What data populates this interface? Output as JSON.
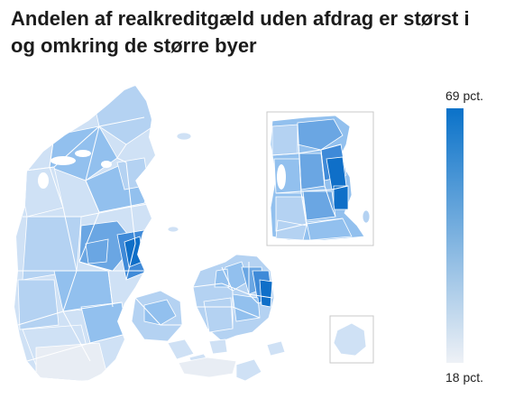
{
  "title": "Andelen af realkreditgæld uden afdrag er størst i og omkring de større byer",
  "legend": {
    "max_label": "69 pct.",
    "min_label": "18 pct.",
    "max_color": "#0a72c9",
    "min_color": "#eef1f6"
  },
  "colors": {
    "very_light": "#e8edf4",
    "light": "#cfe1f5",
    "light_mid": "#b4d2f2",
    "mid": "#92c0ee",
    "mid_dark": "#6aa6e3",
    "dark": "#3f8ad8",
    "darkest": "#0f6fc8",
    "border": "#ffffff",
    "inset_frame": "#c8c8c8"
  }
}
